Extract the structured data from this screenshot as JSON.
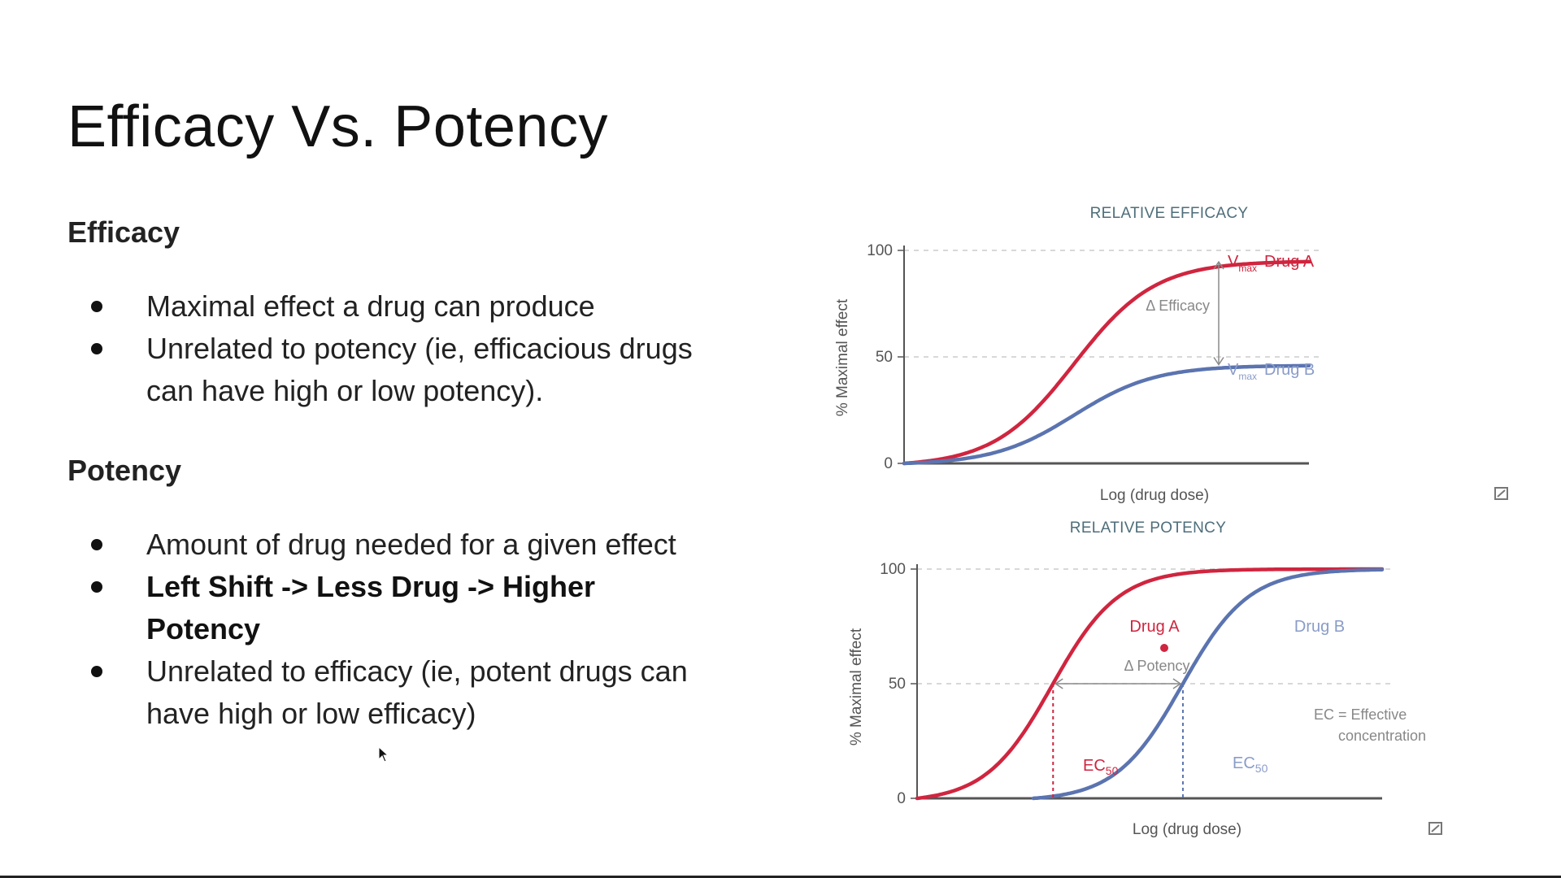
{
  "slide": {
    "title": "Efficacy Vs. Potency",
    "efficacy": {
      "heading": "Efficacy",
      "bullets": [
        "Maximal effect a drug can produce",
        "Unrelated to potency (ie, efficacious drugs can have high or low potency)."
      ]
    },
    "potency": {
      "heading": "Potency",
      "bullets": [
        "Amount of drug needed for a given effect",
        "Left Shift -> Less Drug -> Higher Potency",
        "Unrelated to efficacy (ie, potent drugs can have high or low efficacy)"
      ]
    }
  },
  "colors": {
    "drug_a": "#d0253f",
    "drug_b": "#5b74b0",
    "axis": "#555555",
    "grid": "#cccccc"
  },
  "icons": {
    "expand_icon": "image-expand-icon",
    "cursor": "mouse-pointer-icon"
  },
  "chart_data": [
    {
      "type": "line",
      "title": "RELATIVE EFFICACY",
      "xlabel": "Log (drug dose)",
      "ylabel": "% Maximal effect",
      "yticks": [
        "0",
        "50",
        "100"
      ],
      "ylim": [
        0,
        100
      ],
      "gridlines": [
        50,
        100
      ],
      "series": [
        {
          "name": "Drug A",
          "vmax_label": "V",
          "vmax_sub": "max",
          "vmax": 95,
          "midpoint": 0.42,
          "slope": 10
        },
        {
          "name": "Drug B",
          "vmax_label": "V",
          "vmax_sub": "max",
          "vmax": 46,
          "midpoint": 0.42,
          "slope": 10
        }
      ],
      "annotation": "Δ Efficacy"
    },
    {
      "type": "line",
      "title": "RELATIVE POTENCY",
      "xlabel": "Log (drug dose)",
      "ylabel": "% Maximal effect",
      "yticks": [
        "0",
        "50",
        "100"
      ],
      "ylim": [
        0,
        100
      ],
      "gridlines": [
        50,
        100
      ],
      "series": [
        {
          "name": "Drug A",
          "vmax": 100,
          "ec50": 0.29,
          "slope": 14,
          "ec50_label": "EC",
          "ec50_sub": "50"
        },
        {
          "name": "Drug B",
          "vmax": 100,
          "ec50": 0.57,
          "slope": 14,
          "ec50_label": "EC",
          "ec50_sub": "50"
        }
      ],
      "annotation": "Δ Potency",
      "note_lines": [
        "EC = Effective",
        "concentration"
      ]
    }
  ]
}
